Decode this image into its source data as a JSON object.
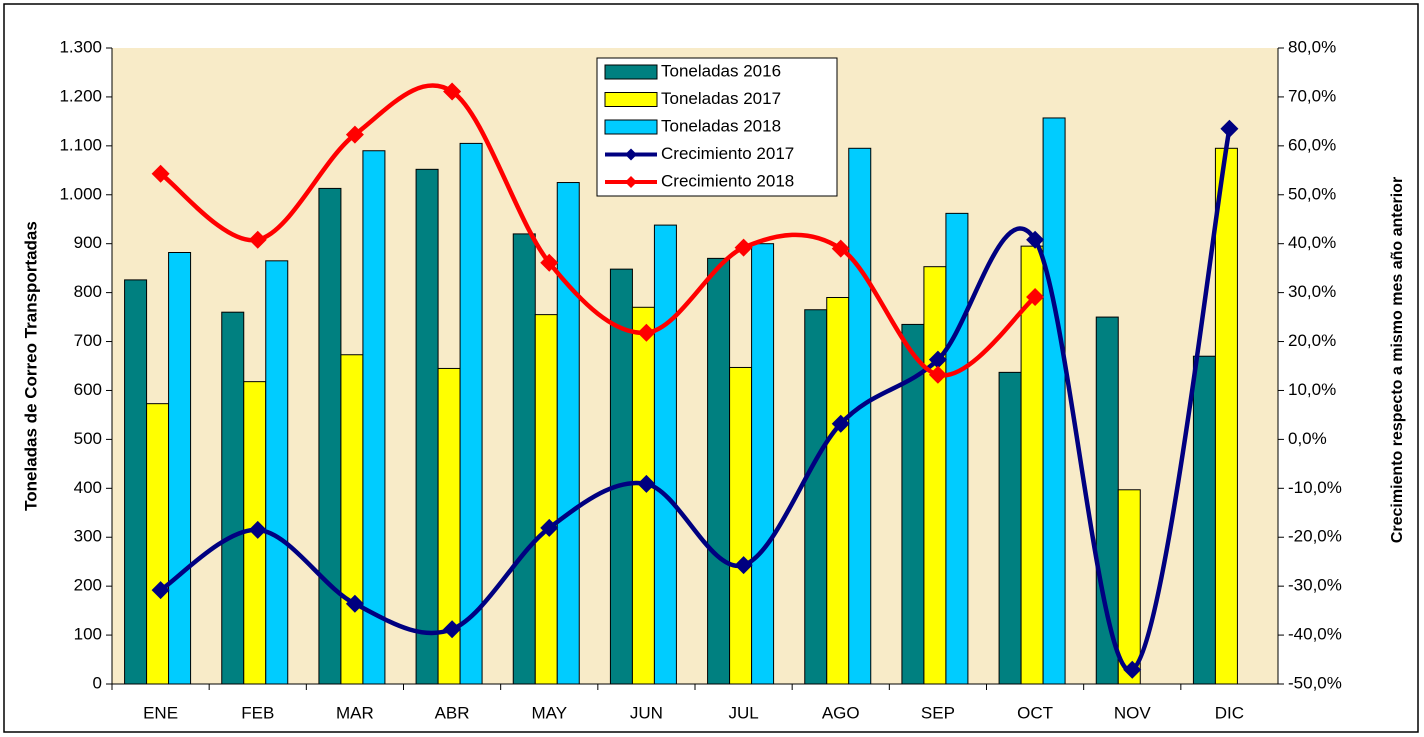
{
  "chart_data": {
    "type": "bar-line",
    "y_label": "Toneladas de Correo  Transportadas",
    "y2_label": "Crecimiento respecto a mismo mes año anterior",
    "categories": [
      "ENE",
      "FEB",
      "MAR",
      "ABR",
      "MAY",
      "JUN",
      "JUL",
      "AGO",
      "SEP",
      "OCT",
      "NOV",
      "DIC"
    ],
    "series": [
      {
        "name": "Toneladas 2016",
        "type": "bar",
        "color": "#008080",
        "values": [
          826,
          760,
          1013,
          1052,
          920,
          848,
          870,
          765,
          735,
          637,
          750,
          670
        ]
      },
      {
        "name": "Toneladas 2017",
        "type": "bar",
        "color": "#ffff00",
        "values": [
          573,
          618,
          673,
          645,
          755,
          770,
          647,
          790,
          853,
          895,
          397,
          1095
        ]
      },
      {
        "name": "Toneladas 2018",
        "type": "bar",
        "color": "#00ccff",
        "values": [
          882,
          865,
          1090,
          1105,
          1025,
          938,
          900,
          1095,
          962,
          1157,
          null,
          null
        ]
      },
      {
        "name": "Crecimiento 2017",
        "type": "line",
        "axis": "y2",
        "color": "#000080",
        "values": [
          -30.8,
          -18.5,
          -33.6,
          -38.8,
          -18.1,
          -9.1,
          -25.7,
          3.2,
          16.3,
          40.8,
          -47.1,
          63.5
        ]
      },
      {
        "name": "Crecimiento 2018",
        "type": "line",
        "axis": "y2",
        "color": "#ff0000",
        "values": [
          54.3,
          40.8,
          62.3,
          71.1,
          36.1,
          21.8,
          39.2,
          39.0,
          13.2,
          29.1,
          null,
          null
        ]
      }
    ],
    "ylim": [
      0,
      1300
    ],
    "yticks": [
      0,
      100,
      200,
      300,
      400,
      500,
      600,
      700,
      800,
      900,
      {
        "value": 1000,
        "label": "1.000"
      },
      {
        "value": 1100,
        "label": "1.100"
      },
      {
        "value": 1200,
        "label": "1.200"
      },
      {
        "value": 1300,
        "label": "1.300"
      }
    ],
    "y2lim": [
      -50,
      80
    ],
    "y2ticks": [
      {
        "value": -50,
        "label": "-50,0%"
      },
      {
        "value": -40,
        "label": "-40,0%"
      },
      {
        "value": -30,
        "label": "-30,0%"
      },
      {
        "value": -20,
        "label": "-20,0%"
      },
      {
        "value": -10,
        "label": "-10,0%"
      },
      {
        "value": 0,
        "label": "0,0%"
      },
      {
        "value": 10,
        "label": "10,0%"
      },
      {
        "value": 20,
        "label": "20,0%"
      },
      {
        "value": 30,
        "label": "30,0%"
      },
      {
        "value": 40,
        "label": "40,0%"
      },
      {
        "value": 50,
        "label": "50,0%"
      },
      {
        "value": 60,
        "label": "60,0%"
      },
      {
        "value": 70,
        "label": "70,0%"
      },
      {
        "value": 80,
        "label": "80,0%"
      }
    ],
    "background": "#f8ebc8"
  }
}
